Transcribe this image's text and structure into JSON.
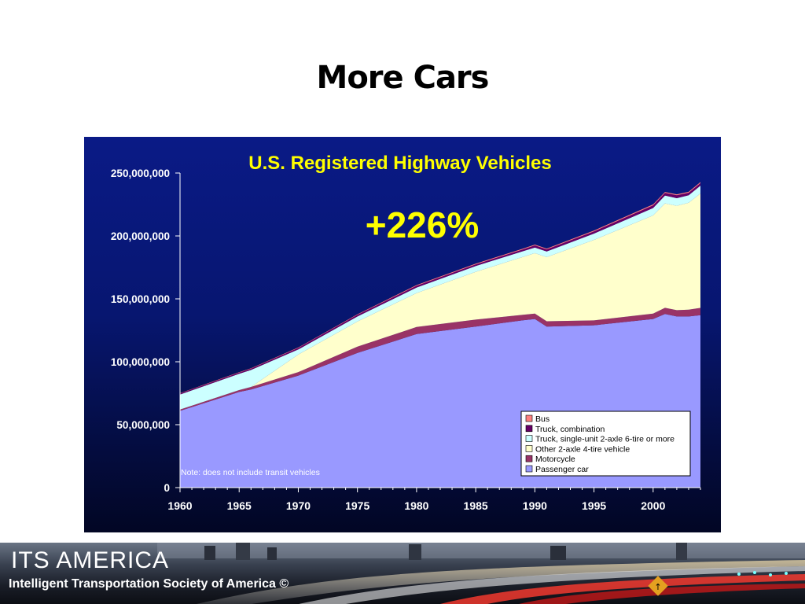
{
  "slide": {
    "title": "More Cars"
  },
  "footer": {
    "logo_text": "ITS AMERICA",
    "organization": "Intelligent Transportation Society of America ©"
  },
  "colors": {
    "passenger_car": "#9999ff",
    "motorcycle": "#993366",
    "other_2axle": "#ffffcc",
    "truck_single_unit": "#ccffff",
    "truck_combination": "#660066",
    "bus": "#ff8080",
    "callout": "#ffff00"
  },
  "chart_data": {
    "type": "area",
    "stacked": true,
    "title": "U.S. Registered Highway Vehicles",
    "callout": "+226%",
    "note": "Note: does not include transit vehicles",
    "xlim": [
      1960,
      2004
    ],
    "ylim": [
      0,
      250000000
    ],
    "x_ticks": [
      1960,
      1965,
      1970,
      1975,
      1980,
      1985,
      1990,
      1995,
      2000
    ],
    "x_tick_labels": [
      "1960",
      "1965",
      "1970",
      "1975",
      "1980",
      "1985",
      "1990",
      "1995",
      "2000"
    ],
    "y_ticks": [
      0,
      50000000,
      100000000,
      150000000,
      200000000,
      250000000
    ],
    "y_tick_labels": [
      "0",
      "50,000,000",
      "100,000,000",
      "150,000,000",
      "200,000,000",
      "250,000,000"
    ],
    "legend_position": "lower-right",
    "x": [
      1960,
      1965,
      1966,
      1970,
      1975,
      1980,
      1985,
      1989,
      1990,
      1991,
      1995,
      2000,
      2001,
      2002,
      2003,
      2004
    ],
    "series": [
      {
        "name": "Passenger car",
        "color": "#9999ff",
        "values": [
          61000000,
          76000000,
          78000000,
          89000000,
          107000000,
          122000000,
          128000000,
          133000000,
          134000000,
          128000000,
          129000000,
          134000000,
          138000000,
          136000000,
          136000000,
          137000000
        ]
      },
      {
        "name": "Motorcycle",
        "color": "#993366",
        "values": [
          1000000,
          1500000,
          2000000,
          2800000,
          5000000,
          5600000,
          5500000,
          4400000,
          4300000,
          4200000,
          3900000,
          4300000,
          4900000,
          5000000,
          5400000,
          5800000
        ]
      },
      {
        "name": "Other 2-axle 4-tire vehicle",
        "color": "#ffffcc",
        "values": [
          0,
          0,
          0,
          14000000,
          20000000,
          27000000,
          38000000,
          46000000,
          48000000,
          51000000,
          64000000,
          78000000,
          83000000,
          83000000,
          85000000,
          91000000
        ]
      },
      {
        "name": "Truck, single-unit 2-axle 6-tire or more",
        "color": "#ccffff",
        "values": [
          12000000,
          13000000,
          13500000,
          4000000,
          4000000,
          4400000,
          4600000,
          4500000,
          4500000,
          4500000,
          5000000,
          5900000,
          6200000,
          6000000,
          5900000,
          6200000
        ]
      },
      {
        "name": "Truck, combination",
        "color": "#660066",
        "values": [
          800000,
          900000,
          1000000,
          1200000,
          1300000,
          1400000,
          1300000,
          1400000,
          1700000,
          1600000,
          1700000,
          2100000,
          2100000,
          2300000,
          2000000,
          2000000
        ]
      },
      {
        "name": "Bus",
        "color": "#ff8080",
        "values": [
          270000,
          300000,
          320000,
          380000,
          460000,
          530000,
          590000,
          610000,
          630000,
          630000,
          690000,
          750000,
          750000,
          760000,
          780000,
          800000
        ]
      }
    ]
  }
}
